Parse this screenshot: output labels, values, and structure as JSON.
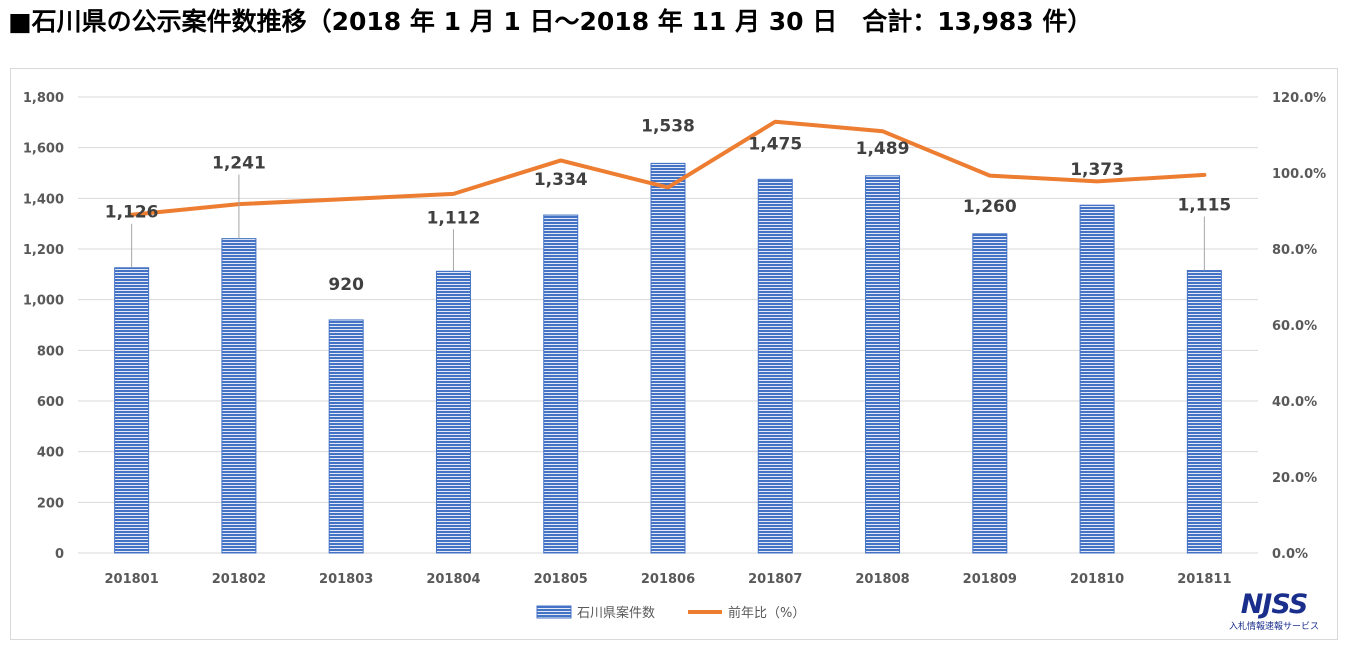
{
  "header": {
    "title": "■石川県の公示案件数推移（2018 年 1 月 1 日～2018 年 11 月 30 日　合計：13,983 件）"
  },
  "logo": {
    "main": "NJSS",
    "sub": "入札情報速報サービス"
  },
  "colors": {
    "bar": "#4472c4",
    "bar_stripe": "#ffffff",
    "line": "#ed7d31",
    "grid": "#d9d9d9",
    "axis_text": "#595959",
    "label_text": "#404040"
  },
  "chart_data": {
    "type": "bar+line",
    "categories": [
      "201801",
      "201802",
      "201803",
      "201804",
      "201805",
      "201806",
      "201807",
      "201808",
      "201809",
      "201810",
      "201811"
    ],
    "series": [
      {
        "name": "石川県案件数",
        "type": "bar",
        "axis": "left",
        "values": [
          1126,
          1241,
          920,
          1112,
          1334,
          1538,
          1475,
          1489,
          1260,
          1373,
          1115
        ],
        "labels": [
          "1,126",
          "1,241",
          "920",
          "1,112",
          "1,334",
          "1,538",
          "1,475",
          "1,489",
          "1,260",
          "1,373",
          "1,115"
        ]
      },
      {
        "name": "前年比（%）",
        "type": "line",
        "axis": "right",
        "values": [
          89.0,
          91.8,
          null,
          94.5,
          103.3,
          96.2,
          113.5,
          111.0,
          99.3,
          97.8,
          99.5
        ]
      }
    ],
    "y_left": {
      "min": 0,
      "max": 1800,
      "step": 200,
      "ticks": [
        "0",
        "200",
        "400",
        "600",
        "800",
        "1,000",
        "1,200",
        "1,400",
        "1,600",
        "1,800"
      ]
    },
    "y_right": {
      "min": 0,
      "max": 120,
      "step": 20,
      "ticks": [
        "0.0%",
        "20.0%",
        "40.0%",
        "60.0%",
        "80.0%",
        "100.0%",
        "120.0%"
      ]
    },
    "grid": true,
    "legend_position": "bottom",
    "legend": [
      "石川県案件数",
      "前年比（%）"
    ]
  }
}
